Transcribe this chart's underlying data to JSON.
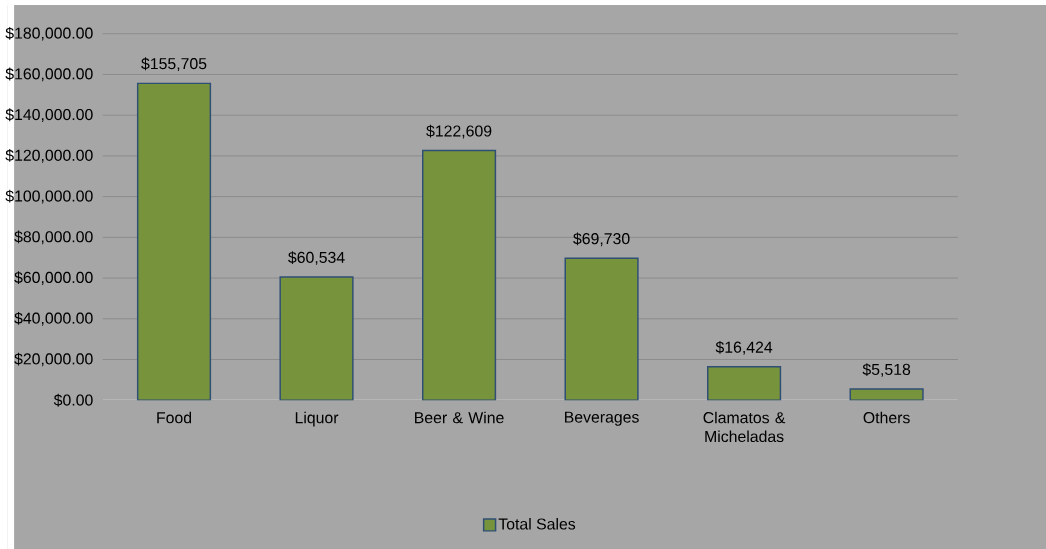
{
  "chart_data": {
    "type": "bar",
    "categories": [
      "Food",
      "Liquor",
      "Beer & Wine",
      "Beverages",
      "Clamatos & Micheladas",
      "Others"
    ],
    "series": [
      {
        "name": "Total Sales",
        "color": "#77933c",
        "values": [
          155705,
          60534,
          122609,
          69730,
          16424,
          5518
        ],
        "value_labels": [
          "$155,705",
          "$60,534",
          "$122,609",
          "$69,730",
          "$16,424",
          "$5,518"
        ]
      }
    ],
    "ylim": [
      0,
      180000
    ],
    "yticks": [
      {
        "value": 0,
        "label": "$0.00"
      },
      {
        "value": 20000,
        "label": "$20,000.00"
      },
      {
        "value": 40000,
        "label": "$40,000.00"
      },
      {
        "value": 60000,
        "label": "$60,000.00"
      },
      {
        "value": 80000,
        "label": "$80,000.00"
      },
      {
        "value": 100000,
        "label": "$100,000.00"
      },
      {
        "value": 120000,
        "label": "$120,000.00"
      },
      {
        "value": 140000,
        "label": "$140,000.00"
      },
      {
        "value": 160000,
        "label": "$160,000.00"
      },
      {
        "value": 180000,
        "label": "$180,000.00"
      }
    ],
    "grid": "y",
    "legend": "bottom"
  }
}
